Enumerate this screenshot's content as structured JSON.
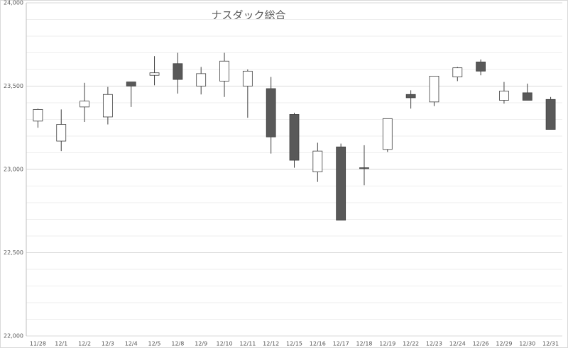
{
  "chart_data": {
    "type": "candlestick",
    "title": "ナスダック総合",
    "categories": [
      "11/28",
      "12/1",
      "12/2",
      "12/3",
      "12/4",
      "12/5",
      "12/8",
      "12/9",
      "12/10",
      "12/11",
      "12/12",
      "12/15",
      "12/16",
      "12/17",
      "12/18",
      "12/19",
      "12/22",
      "12/23",
      "12/24",
      "12/26",
      "12/29",
      "12/30",
      "12/31"
    ],
    "open": [
      23290,
      23170,
      23375,
      23315,
      23525,
      23565,
      23635,
      23500,
      23530,
      23500,
      23485,
      23330,
      22985,
      23135,
      23010,
      23120,
      23450,
      23405,
      23555,
      23645,
      23415,
      23460,
      23420
    ],
    "high": [
      23365,
      23360,
      23520,
      23495,
      23525,
      23680,
      23700,
      23615,
      23700,
      23600,
      23555,
      23340,
      23160,
      23155,
      23145,
      23305,
      23475,
      23560,
      23615,
      23660,
      23525,
      23515,
      23435
    ],
    "low": [
      23250,
      23110,
      23285,
      23270,
      23375,
      23505,
      23455,
      23450,
      23435,
      23310,
      23095,
      23010,
      22925,
      22695,
      22905,
      23105,
      23365,
      23380,
      23530,
      23565,
      23395,
      23415,
      23240
    ],
    "close": [
      23360,
      23270,
      23410,
      23450,
      23500,
      23580,
      23540,
      23575,
      23650,
      23590,
      23195,
      23055,
      23110,
      22695,
      23005,
      23305,
      23430,
      23560,
      23610,
      23590,
      23470,
      23415,
      23240
    ],
    "up_color": "#ffffff",
    "down_color": "#595959",
    "ylim": [
      22000,
      24000
    ],
    "yticks": [
      {
        "value": 22000,
        "label": "22,000"
      },
      {
        "value": 22500,
        "label": "22,500"
      },
      {
        "value": 23000,
        "label": "23,000"
      },
      {
        "value": 23500,
        "label": "23,500"
      },
      {
        "value": 24000,
        "label": "24,000"
      }
    ],
    "gridlines": [
      22100,
      22200,
      22300,
      22400,
      22600,
      22700,
      22800,
      22900,
      23100,
      23200,
      23300,
      23400,
      23600,
      23700,
      23800,
      23900
    ],
    "grid": true
  }
}
